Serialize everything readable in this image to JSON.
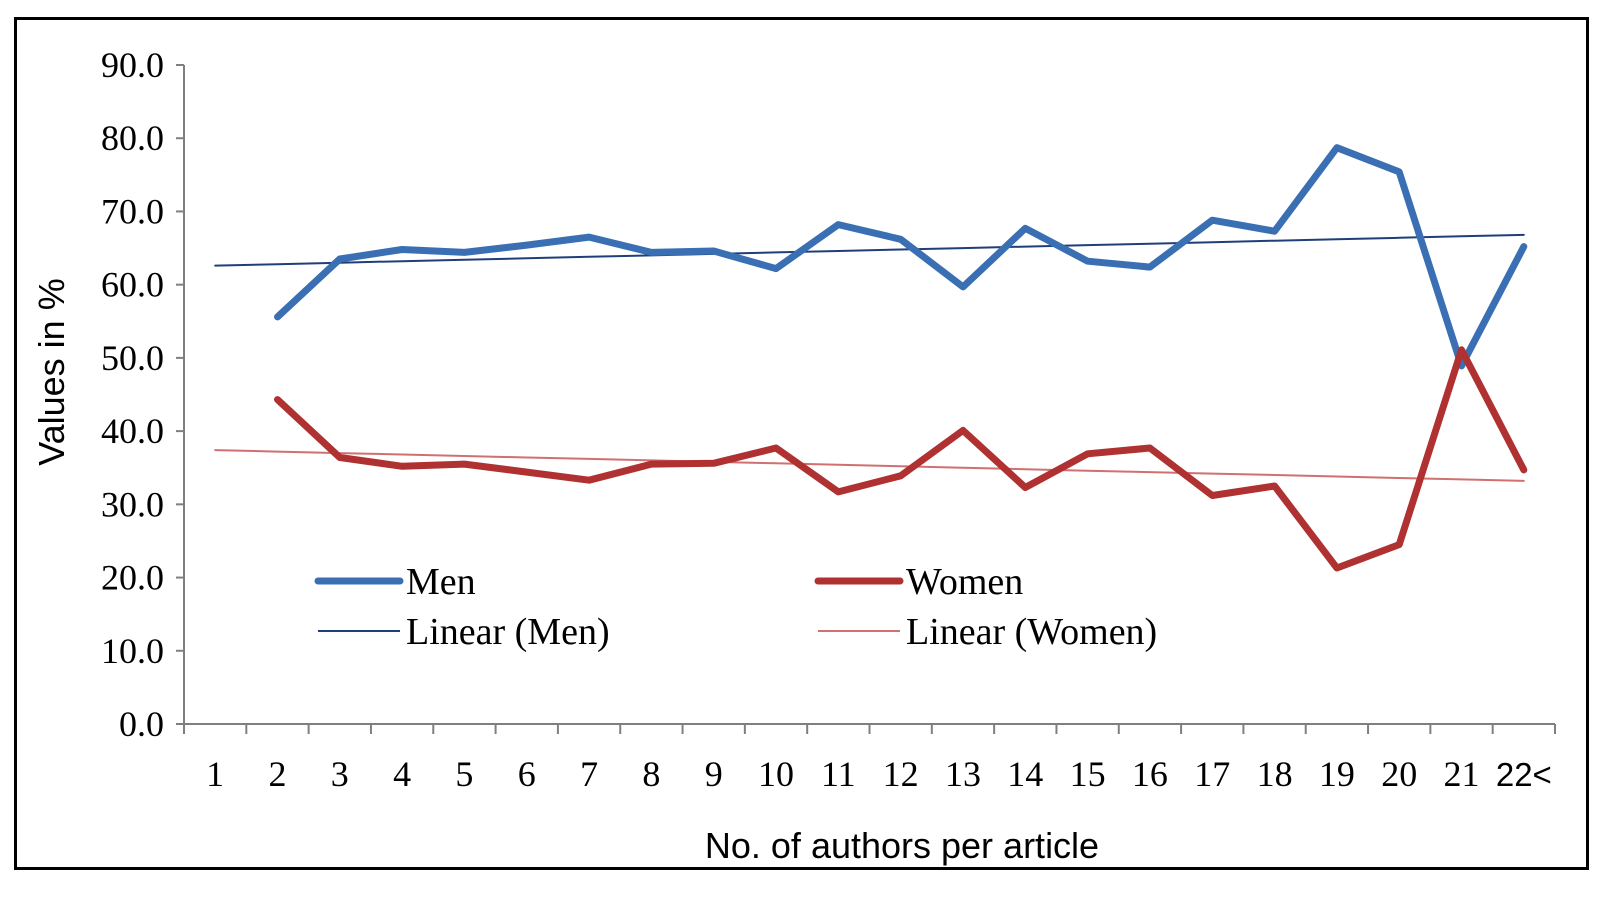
{
  "chart_data": {
    "type": "line",
    "categories": [
      "1",
      "2",
      "3",
      "4",
      "5",
      "6",
      "7",
      "8",
      "9",
      "10",
      "11",
      "12",
      "13",
      "14",
      "15",
      "16",
      "17",
      "18",
      "19",
      "20",
      "21",
      "22<"
    ],
    "series": [
      {
        "name": "Men",
        "color": "#3A6FB4",
        "values": [
          null,
          55.6,
          63.5,
          64.8,
          64.4,
          65.4,
          66.5,
          64.4,
          64.6,
          62.2,
          68.2,
          66.2,
          59.7,
          67.7,
          63.2,
          62.4,
          68.8,
          67.3,
          78.7,
          75.4,
          48.9,
          65.2
        ]
      },
      {
        "name": "Women",
        "color": "#B03131",
        "values": [
          null,
          44.3,
          36.4,
          35.2,
          35.5,
          34.4,
          33.3,
          35.5,
          35.6,
          37.7,
          31.7,
          33.9,
          40.1,
          32.3,
          36.9,
          37.7,
          31.2,
          32.5,
          21.3,
          24.5,
          51.1,
          34.7
        ]
      },
      {
        "name": "Linear (Men)",
        "color": "#1F3F7A",
        "trendline": true,
        "values": [
          62.6,
          62.8,
          63.0,
          63.2,
          63.4,
          63.6,
          63.8,
          64.0,
          64.2,
          64.4,
          64.6,
          64.8,
          65.0,
          65.2,
          65.4,
          65.6,
          65.8,
          66.0,
          66.2,
          66.4,
          66.6,
          66.8
        ]
      },
      {
        "name": "Linear (Women)",
        "color": "#D07070",
        "trendline": true,
        "values": [
          37.4,
          37.2,
          37.0,
          36.8,
          36.6,
          36.4,
          36.2,
          36.0,
          35.8,
          35.6,
          35.4,
          35.2,
          35.0,
          34.8,
          34.6,
          34.4,
          34.2,
          34.0,
          33.8,
          33.6,
          33.4,
          33.2
        ]
      }
    ],
    "yticks": [
      "0.0",
      "10.0",
      "20.0",
      "30.0",
      "40.0",
      "50.0",
      "60.0",
      "70.0",
      "80.0",
      "90.0"
    ],
    "ylim": [
      0,
      90
    ],
    "xlabel": "No. of authors per article",
    "ylabel": "Values in %",
    "grid": false,
    "legend_position": "lower-left-inside"
  }
}
